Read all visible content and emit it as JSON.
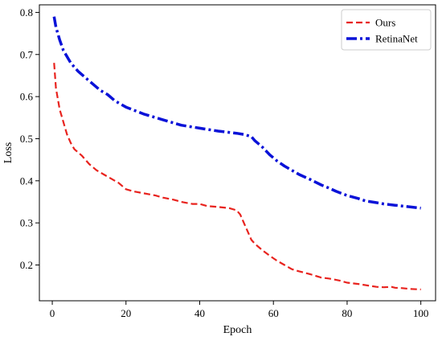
{
  "chart_data": {
    "type": "line",
    "title": "",
    "xlabel": "Epoch",
    "ylabel": "Loss",
    "xlim": [
      -3.5,
      104
    ],
    "ylim": [
      0.115,
      0.818
    ],
    "xticks": [
      0,
      20,
      40,
      60,
      80,
      100
    ],
    "yticks": [
      0.2,
      0.3,
      0.4,
      0.5,
      0.6,
      0.7,
      0.8
    ],
    "grid": false,
    "legend_position": "top-right",
    "series": [
      {
        "name": "Ours",
        "color": "#e8231e",
        "line_style": "dashed",
        "x": [
          0.5,
          1,
          2,
          3,
          4,
          5,
          6,
          8,
          10,
          12,
          15,
          18,
          20,
          22,
          25,
          28,
          30,
          33,
          35,
          38,
          40,
          42,
          45,
          48,
          50,
          51,
          52,
          53,
          54,
          55,
          57,
          59,
          61,
          63,
          65,
          67,
          70,
          73,
          75,
          78,
          80,
          83,
          85,
          88,
          90,
          92,
          93,
          95,
          97,
          100
        ],
        "y": [
          0.68,
          0.62,
          0.57,
          0.54,
          0.51,
          0.49,
          0.475,
          0.46,
          0.44,
          0.425,
          0.41,
          0.395,
          0.38,
          0.375,
          0.37,
          0.365,
          0.36,
          0.355,
          0.35,
          0.345,
          0.345,
          0.34,
          0.338,
          0.335,
          0.33,
          0.32,
          0.3,
          0.28,
          0.26,
          0.25,
          0.235,
          0.222,
          0.21,
          0.2,
          0.19,
          0.185,
          0.178,
          0.17,
          0.168,
          0.163,
          0.158,
          0.155,
          0.152,
          0.148,
          0.147,
          0.148,
          0.146,
          0.145,
          0.143,
          0.142
        ]
      },
      {
        "name": "RetinaNet",
        "color": "#0a12d8",
        "line_style": "dashdot",
        "x": [
          0.5,
          1,
          2,
          3,
          4,
          5,
          7,
          9,
          11,
          13,
          15,
          17,
          20,
          25,
          30,
          35,
          40,
          45,
          50,
          52,
          54,
          55,
          57,
          59,
          61,
          63,
          65,
          67,
          70,
          73,
          75,
          77,
          80,
          83,
          85,
          88,
          90,
          93,
          95,
          98,
          100
        ],
        "y": [
          0.79,
          0.765,
          0.735,
          0.71,
          0.695,
          0.68,
          0.66,
          0.645,
          0.63,
          0.615,
          0.605,
          0.59,
          0.575,
          0.558,
          0.545,
          0.532,
          0.525,
          0.518,
          0.513,
          0.51,
          0.505,
          0.495,
          0.48,
          0.462,
          0.447,
          0.435,
          0.425,
          0.415,
          0.403,
          0.39,
          0.383,
          0.375,
          0.365,
          0.358,
          0.352,
          0.348,
          0.345,
          0.342,
          0.34,
          0.337,
          0.335
        ]
      }
    ]
  }
}
